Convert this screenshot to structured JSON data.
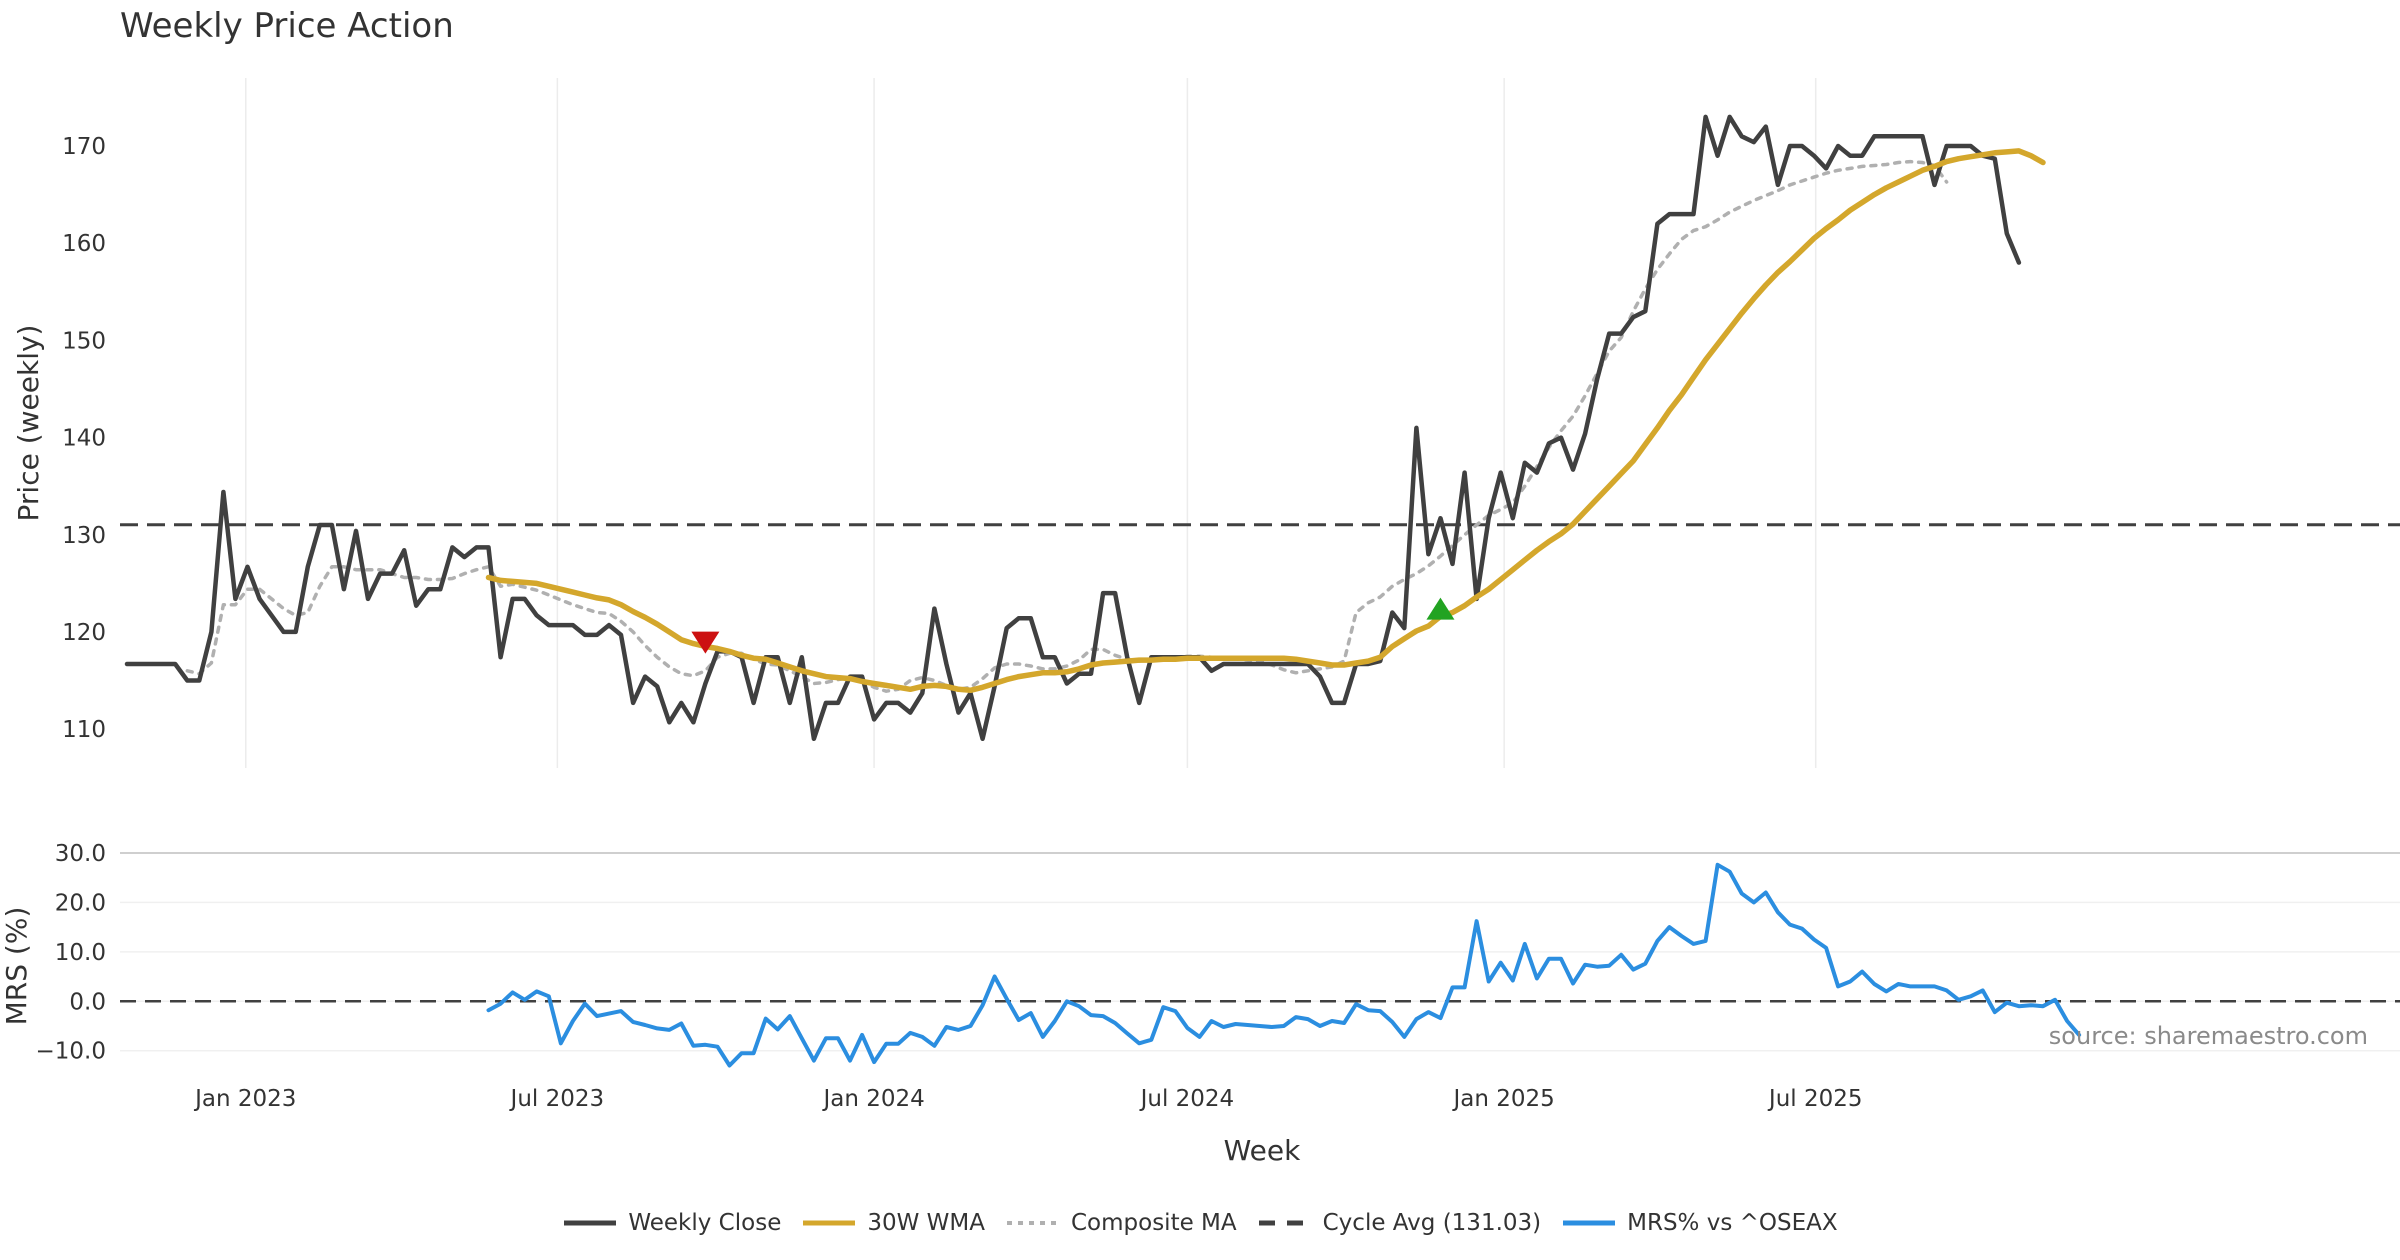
{
  "title": "Weekly Price Action",
  "source": "source: sharemaestro.com",
  "chart_data": [
    {
      "type": "line",
      "panel": "price",
      "ylabel": "Price (weekly)",
      "xlabel": "",
      "ylim": [
        106,
        177
      ],
      "yticks": [
        110,
        120,
        130,
        140,
        150,
        160,
        170
      ],
      "x_start": "2022-10-24",
      "x_step_days": 7,
      "xtick_labels": [
        {
          "label": "Jan 2023",
          "date": "2023-01-01"
        },
        {
          "label": "Jul 2023",
          "date": "2023-07-01"
        },
        {
          "label": "Jan 2024",
          "date": "2024-01-01"
        },
        {
          "label": "Jul 2024",
          "date": "2024-07-01"
        },
        {
          "label": "Jan 2025",
          "date": "2025-01-01"
        },
        {
          "label": "Jul 2025",
          "date": "2025-07-01"
        }
      ],
      "grid": "vertical",
      "reference_line": {
        "name": "Cycle Avg (131.03)",
        "value": 131.03
      },
      "series": [
        {
          "name": "Weekly Close",
          "color": "#404040",
          "start_index": 0,
          "values": [
            116.7,
            116.7,
            116.7,
            116.7,
            116.7,
            115.0,
            115.0,
            120.0,
            134.4,
            123.4,
            126.7,
            123.4,
            121.7,
            120.0,
            120.0,
            126.7,
            131.0,
            131.0,
            124.4,
            130.4,
            123.4,
            126.0,
            126.0,
            128.4,
            122.7,
            124.4,
            124.4,
            128.7,
            127.7,
            128.7,
            128.7,
            117.4,
            123.4,
            123.4,
            121.7,
            120.7,
            120.7,
            120.7,
            119.7,
            119.7,
            120.7,
            119.7,
            112.7,
            115.4,
            114.4,
            110.7,
            112.7,
            110.7,
            114.7,
            118.0,
            118.0,
            117.4,
            112.7,
            117.4,
            117.4,
            112.7,
            117.4,
            109.0,
            112.7,
            112.7,
            115.4,
            115.4,
            111.0,
            112.7,
            112.7,
            111.7,
            113.7,
            122.4,
            116.7,
            111.7,
            113.7,
            109.0,
            114.4,
            120.4,
            121.4,
            121.4,
            117.4,
            117.4,
            114.7,
            115.7,
            115.7,
            124.0,
            124.0,
            117.4,
            112.7,
            117.4,
            117.4,
            117.4,
            117.4,
            117.4,
            116.0,
            116.7,
            116.7,
            116.7,
            116.7,
            116.7,
            116.7,
            116.7,
            116.7,
            115.4,
            112.7,
            112.7,
            116.7,
            116.7,
            117.0,
            122.0,
            120.4,
            141.0,
            128.0,
            131.7,
            127.0,
            136.4,
            123.4,
            131.7,
            136.4,
            131.7,
            137.4,
            136.4,
            139.4,
            140.0,
            136.7,
            140.4,
            146.0,
            150.7,
            150.7,
            152.4,
            153.0,
            162.0,
            163.0,
            163.0,
            163.0,
            173.0,
            169.0,
            173.0,
            171.0,
            170.4,
            172.0,
            166.0,
            170.0,
            170.0,
            169.0,
            167.7,
            170.0,
            169.0,
            169.0,
            171.0,
            171.0,
            171.0,
            171.0,
            171.0,
            166.0,
            170.0,
            170.0,
            170.0,
            169.0,
            168.7,
            161.0,
            158.0
          ]
        },
        {
          "name": "30W WMA",
          "color": "#d4a72c",
          "start_index": 30,
          "values": [
            125.6,
            125.3,
            125.2,
            125.1,
            125.0,
            124.7,
            124.4,
            124.1,
            123.8,
            123.5,
            123.3,
            122.8,
            122.1,
            121.5,
            120.8,
            120.0,
            119.2,
            118.8,
            118.5,
            118.3,
            118.0,
            117.6,
            117.3,
            117.2,
            116.8,
            116.4,
            116.0,
            115.7,
            115.4,
            115.3,
            115.2,
            114.9,
            114.7,
            114.5,
            114.3,
            114.1,
            114.4,
            114.5,
            114.4,
            114.1,
            114.0,
            114.3,
            114.7,
            115.1,
            115.4,
            115.6,
            115.8,
            115.8,
            115.9,
            116.2,
            116.6,
            116.8,
            116.9,
            117.0,
            117.1,
            117.1,
            117.2,
            117.2,
            117.3,
            117.3,
            117.3,
            117.3,
            117.3,
            117.3,
            117.3,
            117.3,
            117.3,
            117.2,
            117.0,
            116.8,
            116.6,
            116.6,
            116.8,
            117.0,
            117.4,
            118.5,
            119.3,
            120.1,
            120.6,
            121.6,
            122.0,
            122.7,
            123.6,
            124.4,
            125.4,
            126.4,
            127.4,
            128.4,
            129.3,
            130.1,
            131.1,
            132.4,
            133.7,
            135.0,
            136.3,
            137.6,
            139.3,
            141.0,
            142.8,
            144.4,
            146.2,
            148.0,
            149.6,
            151.2,
            152.8,
            154.3,
            155.7,
            157.0,
            158.1,
            159.3,
            160.5,
            161.5,
            162.4,
            163.4,
            164.2,
            165.0,
            165.7,
            166.3,
            166.9,
            167.5,
            167.9,
            168.4,
            168.7,
            168.9,
            169.1,
            169.3,
            169.4,
            169.5,
            169.0,
            168.3
          ]
        },
        {
          "name": "Composite MA",
          "color": "#b0b0b0",
          "start_index": 5,
          "values": [
            116.0,
            115.7,
            116.8,
            122.8,
            122.8,
            124.4,
            124.4,
            123.4,
            122.4,
            121.7,
            122.0,
            124.7,
            126.7,
            126.7,
            126.4,
            126.4,
            126.4,
            126.0,
            125.6,
            125.6,
            125.4,
            125.4,
            125.5,
            126.0,
            126.4,
            126.7,
            124.7,
            124.9,
            124.6,
            124.3,
            123.8,
            123.3,
            122.8,
            122.4,
            122.0,
            121.9,
            121.1,
            120.0,
            118.6,
            117.4,
            116.4,
            115.7,
            115.5,
            116.0,
            117.4,
            117.8,
            117.8,
            117.2,
            116.7,
            116.6,
            116.0,
            115.4,
            114.7,
            114.8,
            115.1,
            115.3,
            114.9,
            114.3,
            113.9,
            114.1,
            115.0,
            115.3,
            115.0,
            114.5,
            114.1,
            114.3,
            115.2,
            116.3,
            116.7,
            116.7,
            116.5,
            116.2,
            116.2,
            116.5,
            117.1,
            118.2,
            118.2,
            117.6,
            117.2,
            117.0,
            117.2,
            117.2,
            117.3,
            117.5,
            117.5,
            117.4,
            117.3,
            117.3,
            117.1,
            117.0,
            116.6,
            116.1,
            115.8,
            116.0,
            116.2,
            116.4,
            117.0,
            122.0,
            123.0,
            123.6,
            124.7,
            125.4,
            126.0,
            126.8,
            127.8,
            128.9,
            130.0,
            131.0,
            132.0,
            132.6,
            133.3,
            135.0,
            137.0,
            139.0,
            140.7,
            142.2,
            144.3,
            146.6,
            148.9,
            150.3,
            153.0,
            155.3,
            157.3,
            158.9,
            160.4,
            161.3,
            161.7,
            162.4,
            163.2,
            163.8,
            164.4,
            164.9,
            165.4,
            166.0,
            166.4,
            166.8,
            167.2,
            167.5,
            167.7,
            167.9,
            168.0,
            168.1,
            168.3,
            168.4,
            168.3,
            168.0,
            166.3
          ]
        }
      ],
      "annotations": [
        {
          "type": "sell-marker",
          "symbol": "triangle-down",
          "color": "#cc1111",
          "x": "2023-09-25",
          "y": 119.0
        },
        {
          "type": "buy-marker",
          "symbol": "triangle-up",
          "color": "#22a322",
          "x": "2024-11-25",
          "y": 122.3
        }
      ]
    },
    {
      "type": "line",
      "panel": "mrs",
      "ylabel": "MRS (%)",
      "xlabel": "Week",
      "ylim": [
        -13.5,
        31
      ],
      "yticks": [
        30.0,
        20.0,
        10.0,
        0.0,
        -10.0
      ],
      "ytick_labels": [
        "30.0",
        "20.0",
        "10.0",
        "0.0",
        "−10.0"
      ],
      "x_start": "2022-10-24",
      "x_step_days": 7,
      "reference_line": {
        "value": 0
      },
      "series": [
        {
          "name": "MRS% vs ^OSEAX",
          "color": "#2b8ee0",
          "start_index": 30,
          "values": [
            -1.8,
            -0.5,
            1.8,
            0.3,
            2.0,
            1.0,
            -8.5,
            -4.0,
            -0.5,
            -3.0,
            -2.5,
            -2.0,
            -4.2,
            -4.8,
            -5.5,
            -5.8,
            -4.5,
            -9.0,
            -8.8,
            -9.2,
            -13.0,
            -10.5,
            -10.5,
            -3.5,
            -5.7,
            -3.0,
            -7.5,
            -12.0,
            -7.5,
            -7.5,
            -12.0,
            -6.8,
            -12.3,
            -8.6,
            -8.6,
            -6.4,
            -7.2,
            -9.0,
            -5.2,
            -5.8,
            -5.0,
            -0.8,
            5.0,
            0.5,
            -3.8,
            -2.4,
            -7.2,
            -4.0,
            0.0,
            -1.0,
            -2.8,
            -3.0,
            -4.4,
            -6.5,
            -8.5,
            -7.8,
            -1.2,
            -2.0,
            -5.4,
            -7.2,
            -4.0,
            -5.2,
            -4.6,
            -4.8,
            -5.0,
            -5.2,
            -5.0,
            -3.2,
            -3.6,
            -5.0,
            -4.0,
            -4.4,
            -0.6,
            -1.8,
            -2.0,
            -4.2,
            -7.2,
            -3.6,
            -2.2,
            -3.4,
            2.8,
            2.8,
            16.2,
            4.0,
            7.8,
            4.2,
            11.6,
            4.6,
            8.6,
            8.6,
            3.6,
            7.4,
            7.0,
            7.2,
            9.4,
            6.4,
            7.6,
            12.2,
            15.0,
            13.2,
            11.6,
            12.2,
            27.6,
            26.2,
            21.8,
            20.0,
            22.0,
            18.0,
            15.5,
            14.7,
            12.5,
            10.8,
            3.0,
            4.0,
            6.0,
            3.5,
            2.0,
            3.5,
            3.0,
            3.0,
            3.0,
            2.2,
            0.3,
            1.0,
            2.2,
            -2.2,
            -0.3,
            -1.0,
            -0.8,
            -1.0,
            0.3,
            -4.0,
            -6.8
          ]
        }
      ]
    }
  ],
  "legend": [
    {
      "label": "Weekly Close",
      "style": "solid",
      "color": "#404040"
    },
    {
      "label": "30W WMA",
      "style": "solid",
      "color": "#d4a72c"
    },
    {
      "label": "Composite MA",
      "style": "dotted",
      "color": "#b0b0b0"
    },
    {
      "label": "Cycle Avg (131.03)",
      "style": "dashed",
      "color": "#404040"
    },
    {
      "label": "MRS% vs ^OSEAX",
      "style": "solid",
      "color": "#2b8ee0"
    }
  ]
}
